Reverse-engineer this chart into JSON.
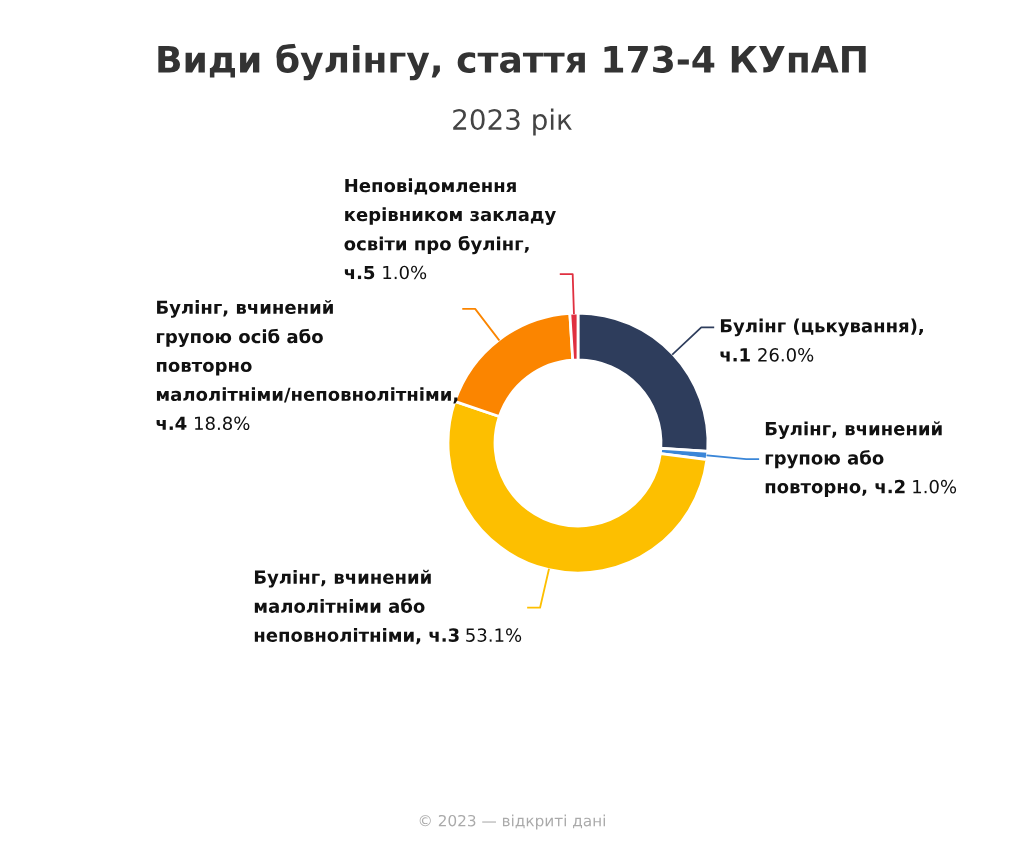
{
  "chart_data": {
    "type": "donut",
    "title": "Види булінгу, стаття 173-4 КУпАП",
    "subtitle": "2023 рік",
    "categories": [
      "Булінг (цькування),\nч.1",
      "Булінг, вчинений\nгрупою або\nповторно, ч.2",
      "Булінг, вчинений\nмалолітніми або\nнеповнолітніми, ч.3",
      "Булінг, вчинений\nгрупою осіб або\nповторно\nмалолітніми/неповнолітніми,\nч.4",
      "Неповідомлення\nкерівником закладу\nосвіти про булінг,\nч.5"
    ],
    "values": [
      26.0,
      1.0,
      53.1,
      18.8,
      1.0
    ],
    "value_labels": [
      "26.0%",
      "1.0%",
      "53.1%",
      "18.8%",
      "1.0%"
    ],
    "colors": [
      "#2e3d5c",
      "#3a86d8",
      "#fdbf00",
      "#fb8500",
      "#e03040"
    ],
    "annotations": [
      "© 2023 — відкриті дані"
    ]
  }
}
